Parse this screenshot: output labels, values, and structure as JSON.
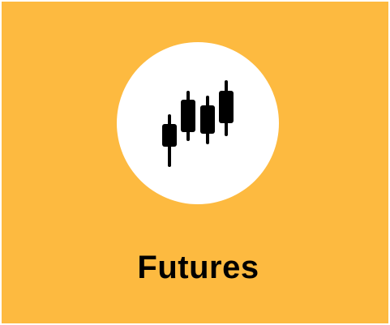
{
  "card": {
    "label": "Futures",
    "icon": "candlestick-chart-icon",
    "background_color": "#FDBA40",
    "icon_background_color": "#FFFFFF",
    "icon_color": "#000000"
  }
}
